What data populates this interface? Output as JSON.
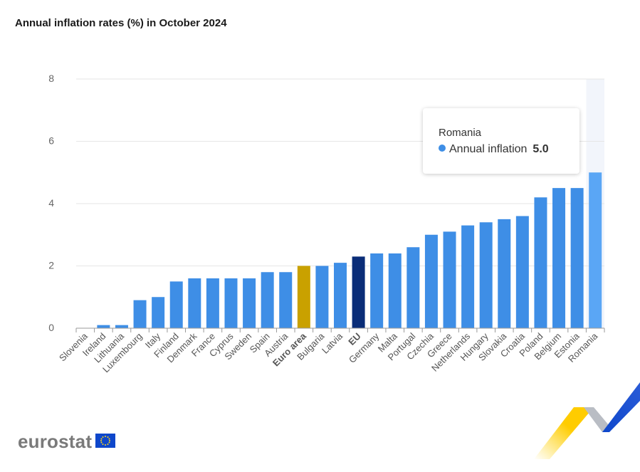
{
  "title": "Annual inflation rates (%) in October 2024",
  "tooltip": {
    "country": "Romania",
    "series_label": "Annual inflation",
    "value": "5.0"
  },
  "logo": {
    "text": "eurostat"
  },
  "colors": {
    "bar": "#3e8ee6",
    "bar_highlight": "#5aa6f5",
    "euro_area": "#c9a100",
    "eu": "#0a2d78",
    "hover_band": "#f2f5fb",
    "grid": "#e6e6e6"
  },
  "chart_data": {
    "type": "bar",
    "title": "Annual inflation rates (%) in October 2024",
    "series": [
      {
        "name": "Annual inflation"
      }
    ],
    "categories": [
      "Slovenia",
      "Ireland",
      "Lithuania",
      "Luxembourg",
      "Italy",
      "Finland",
      "Denmark",
      "France",
      "Cyprus",
      "Sweden",
      "Spain",
      "Austria",
      "Euro area",
      "Bulgaria",
      "Latvia",
      "EU",
      "Germany",
      "Malta",
      "Portugal",
      "Czechia",
      "Greece",
      "Netherlands",
      "Hungary",
      "Slovakia",
      "Croatia",
      "Poland",
      "Belgium",
      "Estonia",
      "Romania"
    ],
    "values": [
      0.0,
      0.1,
      0.1,
      0.9,
      1.0,
      1.5,
      1.6,
      1.6,
      1.6,
      1.6,
      1.8,
      1.8,
      2.0,
      2.0,
      2.1,
      2.3,
      2.4,
      2.4,
      2.6,
      3.0,
      3.1,
      3.3,
      3.4,
      3.5,
      3.6,
      4.2,
      4.5,
      4.5,
      5.0
    ],
    "bold_categories": [
      "Euro area",
      "EU"
    ],
    "highlighted_category": "Romania",
    "yticks": [
      0,
      2,
      4,
      6,
      8
    ],
    "ylim": [
      0,
      8
    ],
    "grid": true,
    "legend": "none"
  }
}
